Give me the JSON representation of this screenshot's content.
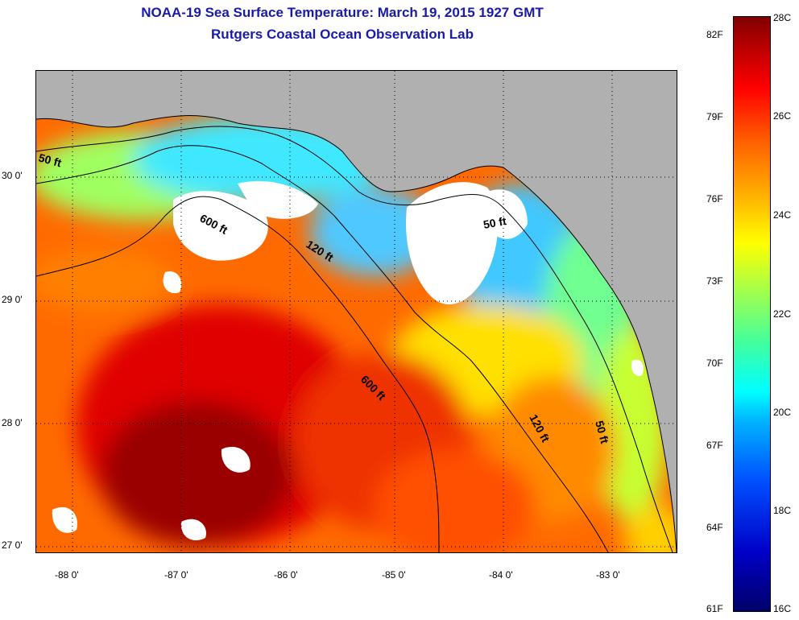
{
  "title": {
    "line1": "NOAA-19 Sea Surface Temperature:  March 19, 2015 1927 GMT",
    "line2": "Rutgers Coastal Ocean Observation Lab"
  },
  "map": {
    "lat_labels": [
      "30 0'",
      "29 0'",
      "28 0'",
      "27 0'"
    ],
    "lon_labels": [
      "-88 0'",
      "-87 0'",
      "-86 0'",
      "-85 0'",
      "-84 0'",
      "-83 0'"
    ],
    "contours": [
      "50 ft",
      "600 ft",
      "120 ft",
      "600 ft",
      "50 ft",
      "120 ft",
      "50 ft"
    ],
    "colors": {
      "land": "#b0b0b0",
      "cloud": "#ffffff",
      "grid": "#000000"
    }
  },
  "colorbar": {
    "fahrenheit": [
      "82F",
      "79F",
      "76F",
      "73F",
      "70F",
      "67F",
      "64F",
      "61F"
    ],
    "celsius": [
      "28C",
      "26C",
      "24C",
      "22C",
      "20C",
      "18C",
      "16C"
    ],
    "range_c": [
      16,
      28
    ]
  }
}
